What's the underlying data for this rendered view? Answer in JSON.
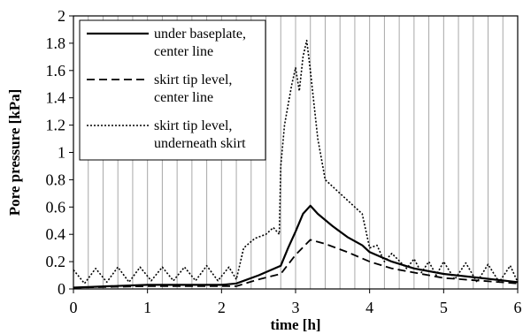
{
  "chart_data": {
    "type": "line",
    "xlabel": "time [h]",
    "ylabel": "Pore pressure [kPa]",
    "xlim": [
      0,
      6
    ],
    "ylim": [
      0,
      2
    ],
    "x_ticks": [
      "0",
      "1",
      "2",
      "3",
      "4",
      "5",
      "6"
    ],
    "y_ticks": [
      "0",
      "0.2",
      "0.4",
      "0.6",
      "0.8",
      "1",
      "1.2",
      "1.4",
      "1.6",
      "1.8",
      "2"
    ],
    "grid": "vertical minor lines every 0.2 h",
    "legend_position": "top-left",
    "series": [
      {
        "name_lines": [
          "under baseplate,",
          "center line"
        ],
        "style": "solid",
        "color": "#000000",
        "points": [
          [
            0,
            0.01
          ],
          [
            0.5,
            0.02
          ],
          [
            1,
            0.03
          ],
          [
            1.5,
            0.03
          ],
          [
            2,
            0.03
          ],
          [
            2.2,
            0.04
          ],
          [
            2.5,
            0.1
          ],
          [
            2.8,
            0.17
          ],
          [
            2.9,
            0.3
          ],
          [
            3,
            0.42
          ],
          [
            3.1,
            0.55
          ],
          [
            3.2,
            0.61
          ],
          [
            3.3,
            0.55
          ],
          [
            3.5,
            0.46
          ],
          [
            3.7,
            0.38
          ],
          [
            3.9,
            0.32
          ],
          [
            4,
            0.27
          ],
          [
            4.3,
            0.2
          ],
          [
            4.6,
            0.15
          ],
          [
            5,
            0.11
          ],
          [
            5.5,
            0.08
          ],
          [
            6,
            0.05
          ]
        ]
      },
      {
        "name_lines": [
          "skirt tip level,",
          "center line"
        ],
        "style": "dashed",
        "color": "#000000",
        "points": [
          [
            0,
            0.01
          ],
          [
            1,
            0.02
          ],
          [
            2,
            0.02
          ],
          [
            2.2,
            0.02
          ],
          [
            2.5,
            0.07
          ],
          [
            2.8,
            0.11
          ],
          [
            3,
            0.25
          ],
          [
            3.2,
            0.36
          ],
          [
            3.4,
            0.33
          ],
          [
            3.7,
            0.27
          ],
          [
            4,
            0.2
          ],
          [
            4.3,
            0.15
          ],
          [
            4.6,
            0.12
          ],
          [
            5,
            0.08
          ],
          [
            5.5,
            0.06
          ],
          [
            6,
            0.04
          ]
        ]
      },
      {
        "name_lines": [
          "skirt tip level,",
          "underneath skirt"
        ],
        "style": "dotted",
        "color": "#000000",
        "points": [
          [
            0,
            0.14
          ],
          [
            0.15,
            0.04
          ],
          [
            0.3,
            0.15
          ],
          [
            0.45,
            0.05
          ],
          [
            0.6,
            0.16
          ],
          [
            0.75,
            0.05
          ],
          [
            0.9,
            0.16
          ],
          [
            1.05,
            0.06
          ],
          [
            1.2,
            0.16
          ],
          [
            1.35,
            0.06
          ],
          [
            1.5,
            0.16
          ],
          [
            1.65,
            0.06
          ],
          [
            1.8,
            0.17
          ],
          [
            1.95,
            0.06
          ],
          [
            2.1,
            0.16
          ],
          [
            2.2,
            0.07
          ],
          [
            2.3,
            0.3
          ],
          [
            2.45,
            0.37
          ],
          [
            2.6,
            0.4
          ],
          [
            2.7,
            0.45
          ],
          [
            2.78,
            0.4
          ],
          [
            2.8,
            0.9
          ],
          [
            2.85,
            1.2
          ],
          [
            2.9,
            1.35
          ],
          [
            2.95,
            1.5
          ],
          [
            3,
            1.62
          ],
          [
            3.05,
            1.45
          ],
          [
            3.1,
            1.7
          ],
          [
            3.15,
            1.82
          ],
          [
            3.2,
            1.6
          ],
          [
            3.3,
            1.1
          ],
          [
            3.4,
            0.8
          ],
          [
            3.5,
            0.75
          ],
          [
            3.6,
            0.7
          ],
          [
            3.7,
            0.65
          ],
          [
            3.8,
            0.6
          ],
          [
            3.9,
            0.55
          ],
          [
            4,
            0.3
          ],
          [
            4.1,
            0.32
          ],
          [
            4.2,
            0.2
          ],
          [
            4.3,
            0.26
          ],
          [
            4.5,
            0.15
          ],
          [
            4.6,
            0.22
          ],
          [
            4.7,
            0.12
          ],
          [
            4.8,
            0.2
          ],
          [
            4.9,
            0.1
          ],
          [
            5,
            0.2
          ],
          [
            5.15,
            0.07
          ],
          [
            5.3,
            0.19
          ],
          [
            5.45,
            0.05
          ],
          [
            5.6,
            0.18
          ],
          [
            5.75,
            0.05
          ],
          [
            5.9,
            0.17
          ],
          [
            6,
            0.05
          ]
        ]
      }
    ]
  }
}
